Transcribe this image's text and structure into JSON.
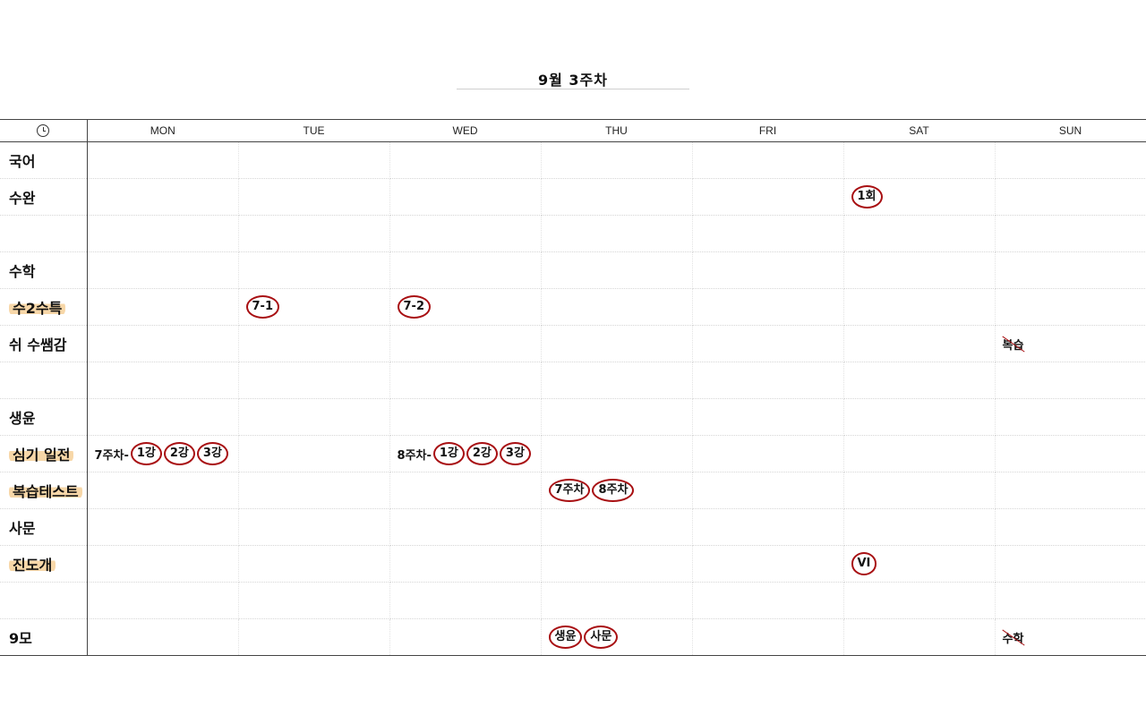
{
  "title": "9월 3주차",
  "days": [
    "MON",
    "TUE",
    "WED",
    "THU",
    "FRI",
    "SAT",
    "SUN"
  ],
  "subjects": [
    {
      "label": "국어",
      "highlight": false
    },
    {
      "label": "수완",
      "highlight": false
    },
    {
      "label": "",
      "highlight": false
    },
    {
      "label": "수학",
      "highlight": false
    },
    {
      "label": "수2수특",
      "highlight": true
    },
    {
      "label": "쉬 수쌤감",
      "highlight": false
    },
    {
      "label": "",
      "highlight": false
    },
    {
      "label": "생윤",
      "highlight": false
    },
    {
      "label": "심기 일전",
      "highlight": true
    },
    {
      "label": "복습테스트",
      "highlight": true
    },
    {
      "label": "사문",
      "highlight": false
    },
    {
      "label": "진도개",
      "highlight": true
    },
    {
      "label": "",
      "highlight": false
    },
    {
      "label": "9모",
      "highlight": false
    }
  ],
  "entries": {
    "suwan_sat": "1회",
    "su2_tue": "7-1",
    "su2_wed": "7-2",
    "ssaem_sun": "복습",
    "simgi_mon_prefix": "7주차-",
    "simgi_mon": [
      "1강",
      "2강",
      "3강"
    ],
    "simgi_wed_prefix": "8주차-",
    "simgi_wed": [
      "1강",
      "2강",
      "3강"
    ],
    "review_thu": [
      "7주차",
      "8주차"
    ],
    "jindo_sat": "VI",
    "mo9_thu": [
      "생윤",
      "사문"
    ],
    "mo9_sun": "수학"
  },
  "colors": {
    "circle": "#a80f12",
    "highlight": "#f7d7a8"
  }
}
